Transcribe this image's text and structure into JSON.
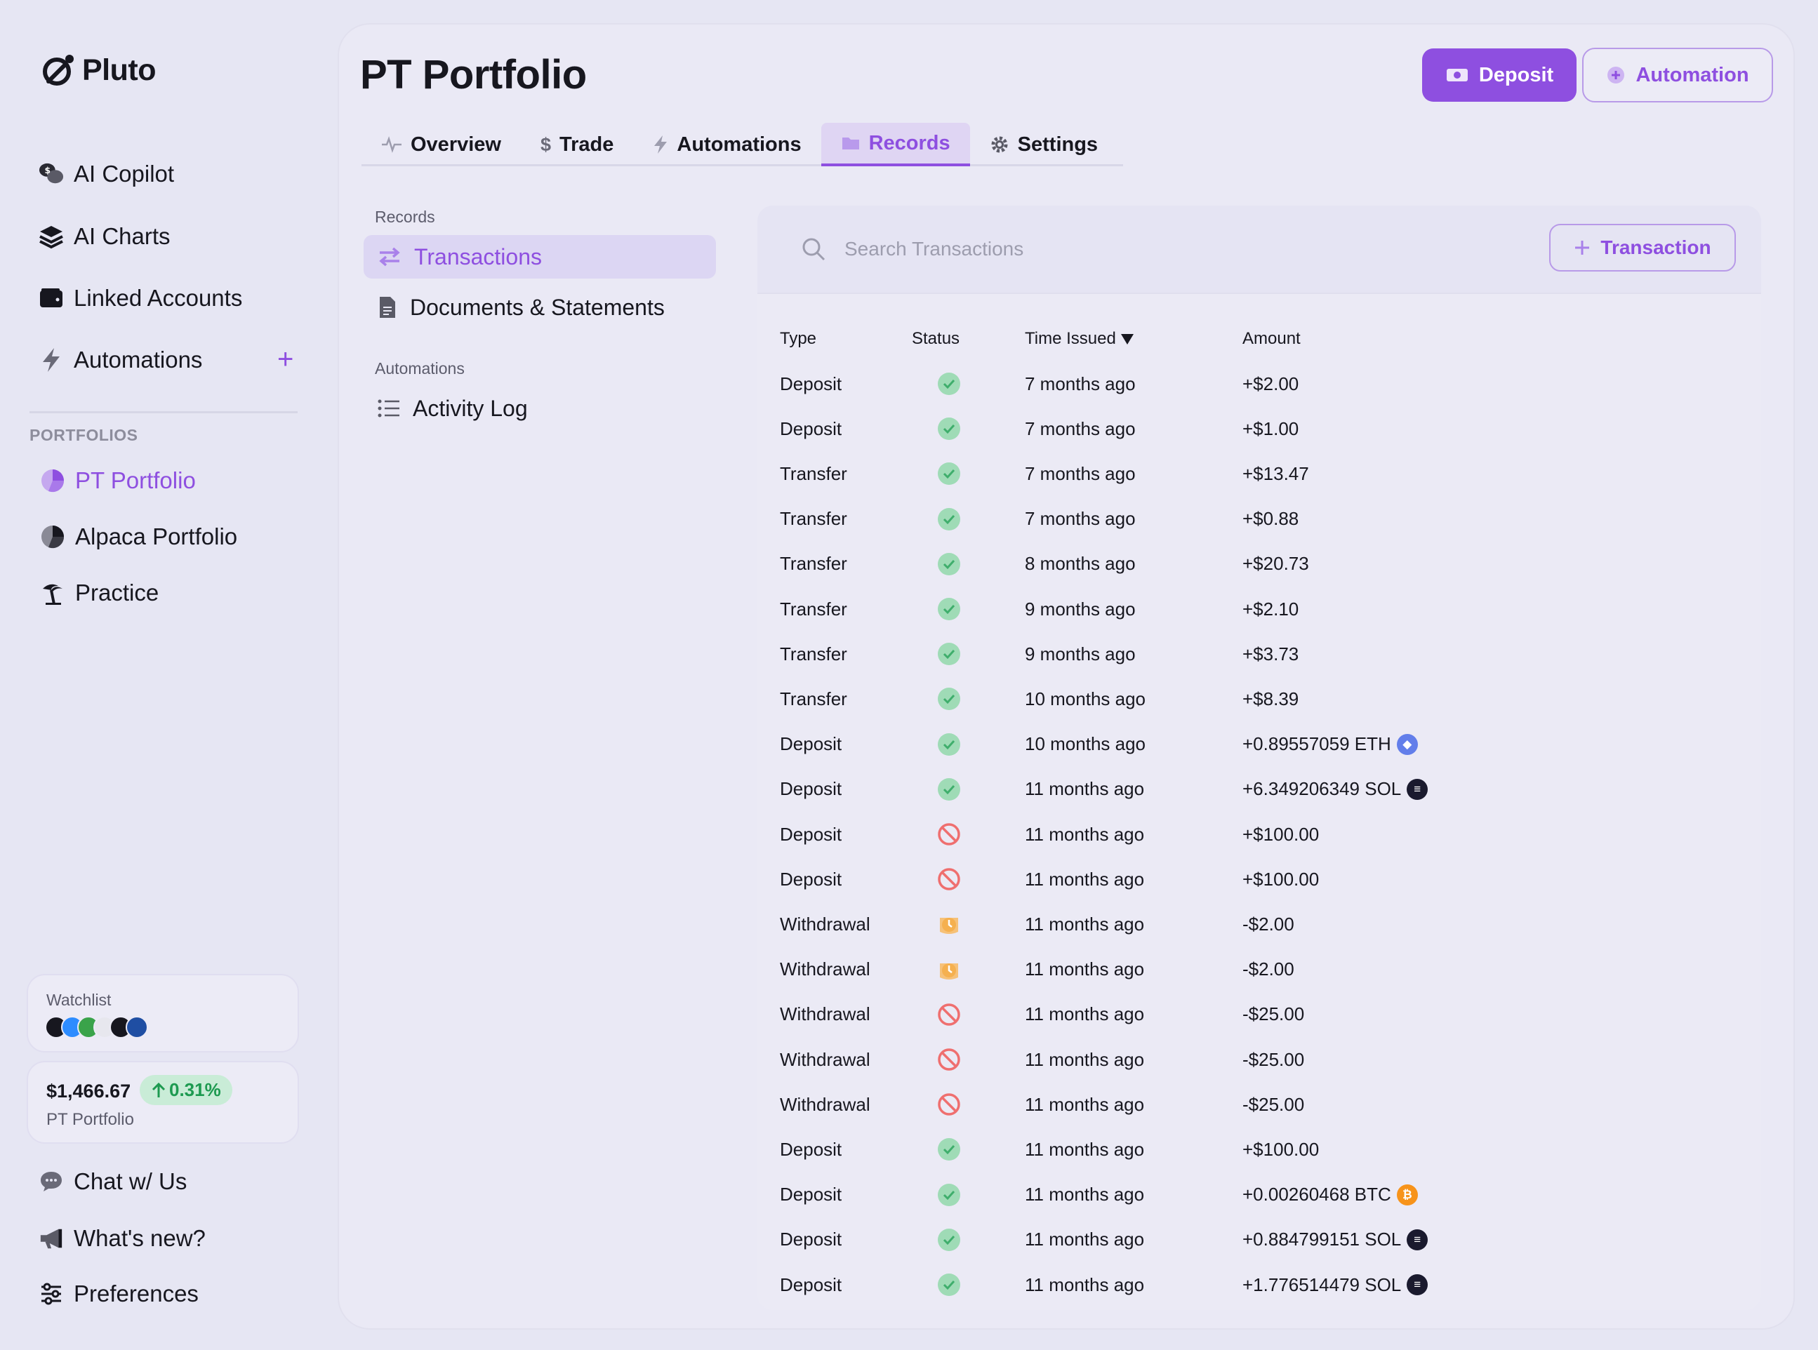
{
  "app": {
    "name": "Pluto"
  },
  "sidebar": {
    "nav": [
      {
        "label": "AI Copilot",
        "icon": "chat-dollar-icon"
      },
      {
        "label": "AI Charts",
        "icon": "layers-icon"
      },
      {
        "label": "Linked Accounts",
        "icon": "wallet-icon"
      },
      {
        "label": "Automations",
        "icon": "lightning-icon"
      }
    ],
    "portfolios_label": "PORTFOLIOS",
    "portfolios": [
      {
        "label": "PT Portfolio",
        "icon": "pie-chart-icon",
        "active": true
      },
      {
        "label": "Alpaca Portfolio",
        "icon": "pie-chart-icon",
        "active": false
      },
      {
        "label": "Practice",
        "icon": "palm-tree-icon",
        "active": false
      }
    ],
    "watchlist": {
      "label": "Watchlist"
    },
    "portfolio_value": {
      "amount": "$1,466.67",
      "change": "0.31%",
      "name": "PT Portfolio"
    },
    "footer": [
      {
        "label": "Chat w/ Us",
        "icon": "chat-bubble-icon"
      },
      {
        "label": "What's new?",
        "icon": "megaphone-icon"
      },
      {
        "label": "Preferences",
        "icon": "sliders-icon"
      }
    ]
  },
  "header": {
    "title": "PT Portfolio",
    "deposit_label": "Deposit",
    "automation_label": "Automation"
  },
  "tabs": [
    {
      "label": "Overview",
      "icon": "pulse-icon"
    },
    {
      "label": "Trade",
      "icon": "dollar-icon"
    },
    {
      "label": "Automations",
      "icon": "lightning-icon"
    },
    {
      "label": "Records",
      "icon": "folder-icon",
      "active": true
    },
    {
      "label": "Settings",
      "icon": "gear-icon"
    }
  ],
  "records_menu": {
    "records_label": "Records",
    "transactions_label": "Transactions",
    "documents_label": "Documents & Statements",
    "automations_label": "Automations",
    "activity_label": "Activity Log"
  },
  "transactions": {
    "search_placeholder": "Search Transactions",
    "add_label": "Transaction",
    "columns": {
      "type": "Type",
      "status": "Status",
      "time": "Time Issued",
      "amount": "Amount"
    },
    "rows": [
      {
        "type": "Deposit",
        "status": "success",
        "time": "7 months ago",
        "amount": "+$2.00"
      },
      {
        "type": "Deposit",
        "status": "success",
        "time": "7 months ago",
        "amount": "+$1.00"
      },
      {
        "type": "Transfer",
        "status": "success",
        "time": "7 months ago",
        "amount": "+$13.47"
      },
      {
        "type": "Transfer",
        "status": "success",
        "time": "7 months ago",
        "amount": "+$0.88"
      },
      {
        "type": "Transfer",
        "status": "success",
        "time": "8 months ago",
        "amount": "+$20.73"
      },
      {
        "type": "Transfer",
        "status": "success",
        "time": "9 months ago",
        "amount": "+$2.10"
      },
      {
        "type": "Transfer",
        "status": "success",
        "time": "9 months ago",
        "amount": "+$3.73"
      },
      {
        "type": "Transfer",
        "status": "success",
        "time": "10 months ago",
        "amount": "+$8.39"
      },
      {
        "type": "Deposit",
        "status": "success",
        "time": "10 months ago",
        "amount": "+0.89557059 ETH",
        "coin": "eth"
      },
      {
        "type": "Deposit",
        "status": "success",
        "time": "11 months ago",
        "amount": "+6.349206349 SOL",
        "coin": "sol"
      },
      {
        "type": "Deposit",
        "status": "failed",
        "time": "11 months ago",
        "amount": "+$100.00"
      },
      {
        "type": "Deposit",
        "status": "failed",
        "time": "11 months ago",
        "amount": "+$100.00"
      },
      {
        "type": "Withdrawal",
        "status": "pending",
        "time": "11 months ago",
        "amount": "-$2.00"
      },
      {
        "type": "Withdrawal",
        "status": "pending",
        "time": "11 months ago",
        "amount": "-$2.00"
      },
      {
        "type": "Withdrawal",
        "status": "failed",
        "time": "11 months ago",
        "amount": "-$25.00"
      },
      {
        "type": "Withdrawal",
        "status": "failed",
        "time": "11 months ago",
        "amount": "-$25.00"
      },
      {
        "type": "Withdrawal",
        "status": "failed",
        "time": "11 months ago",
        "amount": "-$25.00"
      },
      {
        "type": "Deposit",
        "status": "success",
        "time": "11 months ago",
        "amount": "+$100.00"
      },
      {
        "type": "Deposit",
        "status": "success",
        "time": "11 months ago",
        "amount": "+0.00260468 BTC",
        "coin": "btc"
      },
      {
        "type": "Deposit",
        "status": "success",
        "time": "11 months ago",
        "amount": "+0.884799151 SOL",
        "coin": "sol"
      },
      {
        "type": "Deposit",
        "status": "success",
        "time": "11 months ago",
        "amount": "+1.776514479 SOL",
        "coin": "sol"
      }
    ]
  },
  "colors": {
    "accent": "#8e4fe0",
    "success": "#86d3a6",
    "failed": "#ef6f6f",
    "pending": "#f5b04f",
    "eth": "#627eea",
    "btc": "#f7931a",
    "sol": "#1a1a2e"
  }
}
